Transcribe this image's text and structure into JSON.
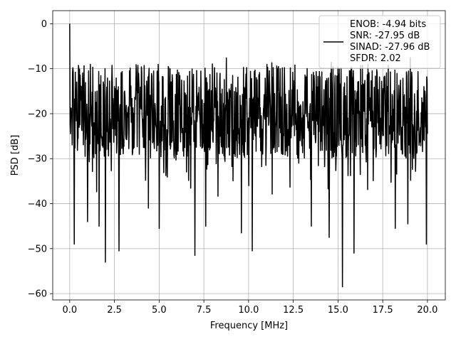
{
  "chart_data": {
    "type": "line",
    "title": "",
    "xlabel": "Frequency [MHz]",
    "ylabel": "PSD [dB]",
    "xlim": [
      -0.95,
      21.0
    ],
    "ylim": [
      -61.4,
      2.9
    ],
    "x_ticks": [
      0.0,
      2.5,
      5.0,
      7.5,
      10.0,
      12.5,
      15.0,
      17.5,
      20.0
    ],
    "x_tick_labels": [
      "0.0",
      "2.5",
      "5.0",
      "7.5",
      "10.0",
      "12.5",
      "15.0",
      "17.5",
      "20.0"
    ],
    "y_ticks": [
      0,
      -10,
      -20,
      -30,
      -40,
      -50,
      -60
    ],
    "y_tick_labels": [
      "0",
      "−10",
      "−20",
      "−30",
      "−40",
      "−50",
      "−60"
    ],
    "grid": true,
    "line_color": "#000000",
    "legend": {
      "placement": "upper right",
      "entries": [
        "ENOB: -4.94 bits",
        "SNR: -27.95 dB",
        "SINAD: -27.96 dB",
        "SFDR: 2.02"
      ]
    },
    "series": [
      {
        "x_range": [
          0.0,
          20.0
        ],
        "points": 1024,
        "typical_range": [
          -30,
          -9
        ],
        "peak": {
          "x": 0.0,
          "y": 0.0
        },
        "min": {
          "x": 15.25,
          "y": -58.5
        },
        "notable_dips": [
          {
            "x": 0.25,
            "y": -49.0
          },
          {
            "x": 1.0,
            "y": -44.0
          },
          {
            "x": 1.65,
            "y": -45.0
          },
          {
            "x": 2.0,
            "y": -53.0
          },
          {
            "x": 2.75,
            "y": -50.5
          },
          {
            "x": 4.4,
            "y": -41.0
          },
          {
            "x": 5.0,
            "y": -45.5
          },
          {
            "x": 7.0,
            "y": -51.5
          },
          {
            "x": 7.6,
            "y": -45.0
          },
          {
            "x": 9.6,
            "y": -46.5
          },
          {
            "x": 10.2,
            "y": -50.5
          },
          {
            "x": 13.5,
            "y": -45.0
          },
          {
            "x": 14.5,
            "y": -47.5
          },
          {
            "x": 15.9,
            "y": -51.0
          },
          {
            "x": 18.2,
            "y": -45.5
          },
          {
            "x": 18.9,
            "y": -44.5
          },
          {
            "x": 19.95,
            "y": -49.0
          }
        ]
      }
    ]
  }
}
